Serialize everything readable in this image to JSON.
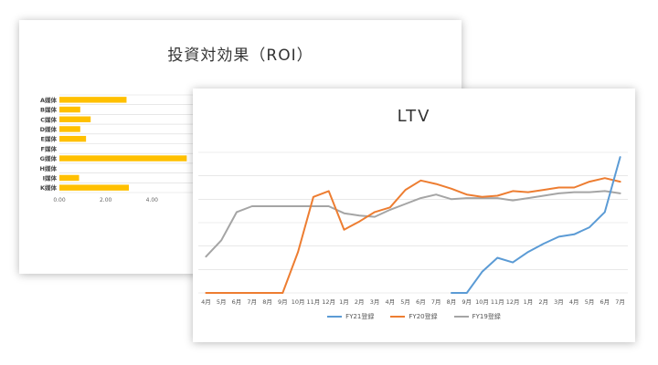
{
  "colors": {
    "roi_bar": "#FFC000",
    "fy21": "#5B9BD5",
    "fy20": "#ED7D31",
    "fy19": "#A5A5A5",
    "grid": "#D9D9D9"
  },
  "chart_data": [
    {
      "type": "bar",
      "orientation": "horizontal",
      "title": "投資対効果（ROI）",
      "categories": [
        "A媒体",
        "B媒体",
        "C媒体",
        "D媒体",
        "E媒体",
        "F媒体",
        "G媒体",
        "H媒体",
        "I媒体",
        "K媒体"
      ],
      "values": [
        2.9,
        0.9,
        1.35,
        0.9,
        1.15,
        0,
        5.5,
        0,
        0.85,
        3.0
      ],
      "xlim": [
        0,
        6
      ],
      "xticks": [
        "0.00",
        "2.00",
        "4.00"
      ],
      "grid": true
    },
    {
      "type": "line",
      "title": "LTV",
      "x": [
        "4月",
        "5月",
        "6月",
        "7月",
        "8月",
        "9月",
        "10月",
        "11月",
        "12月",
        "1月",
        "2月",
        "3月",
        "4月",
        "5月",
        "6月",
        "7月",
        "8月",
        "9月",
        "10月",
        "11月",
        "12月",
        "1月",
        "2月",
        "3月",
        "4月",
        "5月",
        "6月",
        "7月"
      ],
      "ylim": [
        0,
        6
      ],
      "grid": true,
      "legend": "bottom",
      "series": [
        {
          "name": "FY21登録",
          "values": [
            null,
            null,
            null,
            null,
            null,
            null,
            null,
            null,
            null,
            null,
            null,
            null,
            null,
            null,
            null,
            null,
            0,
            0,
            0.9,
            1.5,
            1.3,
            1.75,
            2.1,
            2.4,
            2.5,
            2.8,
            3.45,
            5.8
          ]
        },
        {
          "name": "FY20登録",
          "values": [
            0,
            0,
            0,
            0,
            0,
            0,
            1.75,
            4.1,
            4.35,
            2.7,
            3.05,
            3.45,
            3.65,
            4.4,
            4.8,
            4.65,
            4.45,
            4.2,
            4.1,
            4.15,
            4.35,
            4.3,
            4.4,
            4.5,
            4.5,
            4.75,
            4.9,
            4.75
          ]
        },
        {
          "name": "FY19登録",
          "values": [
            1.55,
            2.25,
            3.45,
            3.7,
            3.7,
            3.7,
            3.7,
            3.7,
            3.7,
            3.4,
            3.3,
            3.25,
            3.55,
            3.8,
            4.05,
            4.2,
            4.0,
            4.05,
            4.05,
            4.05,
            3.95,
            4.05,
            4.15,
            4.25,
            4.3,
            4.3,
            4.35,
            4.25
          ]
        }
      ]
    }
  ]
}
